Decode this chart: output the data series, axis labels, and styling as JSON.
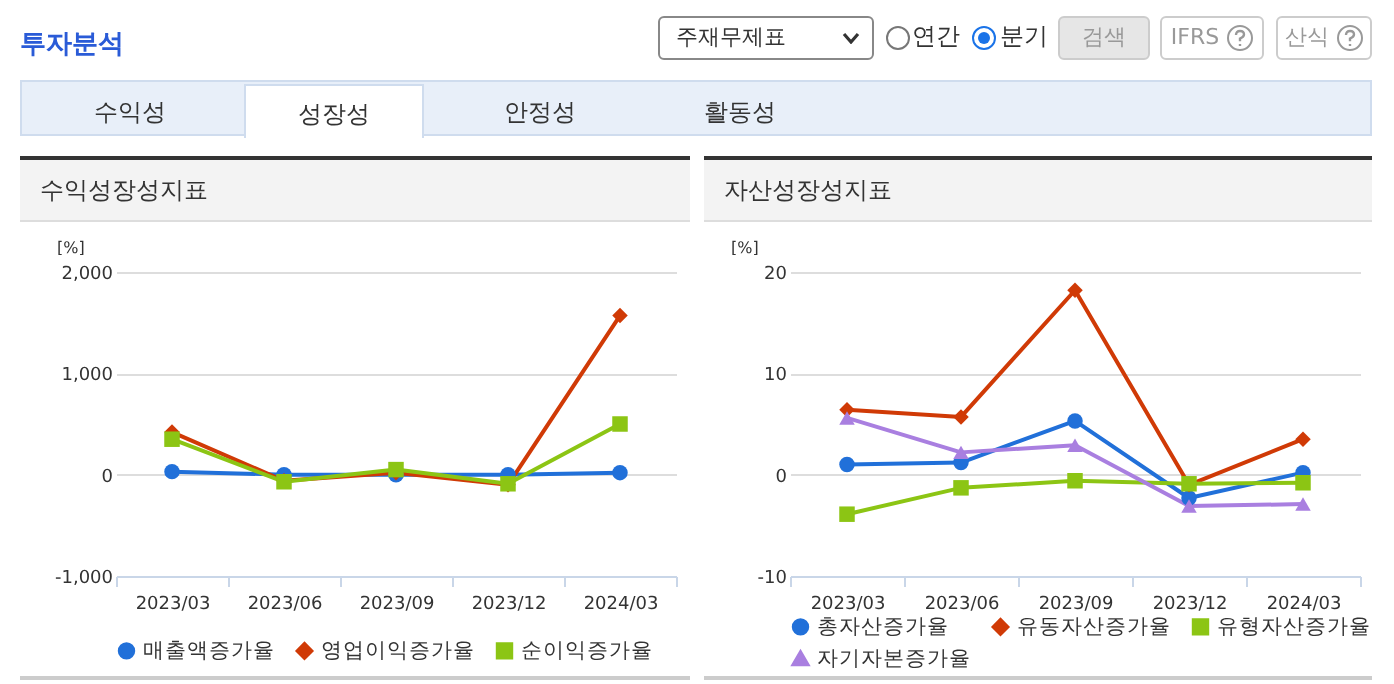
{
  "chart_data": [
    {
      "type": "line",
      "title": "수익성장성지표",
      "ylabel": "[%]",
      "categories": [
        "2023/03",
        "2023/06",
        "2023/09",
        "2023/12",
        "2024/03"
      ],
      "ylim": [
        -1000,
        2000
      ],
      "yticks": [
        {
          "value": -1000,
          "label": "-1,000"
        },
        0,
        {
          "value": 1000,
          "label": "1,000"
        },
        {
          "value": 2000,
          "label": "2,000"
        }
      ],
      "grid": "y",
      "legend": "bottom",
      "annotations": [
        "투자분석",
        "주재무제표",
        "연간",
        "분기",
        "검색",
        "IFRS",
        "산식",
        "수익성",
        "성장성",
        "안정성",
        "활동성"
      ],
      "series": [
        {
          "name": "매출액증가율",
          "color": "#2170d9",
          "marker": "circle",
          "values": [
            30,
            0,
            0,
            0,
            20
          ]
        },
        {
          "name": "영업이익증가율",
          "color": "#d03a06",
          "marker": "diamond",
          "values": [
            420,
            -60,
            20,
            -100,
            1570
          ]
        },
        {
          "name": "순이익증가율",
          "color": "#8cc514",
          "marker": "square",
          "values": [
            350,
            -70,
            50,
            -90,
            500
          ]
        }
      ]
    },
    {
      "type": "line",
      "title": "자산성장성지표",
      "ylabel": "[%]",
      "categories": [
        "2023/03",
        "2023/06",
        "2023/09",
        "2023/12",
        "2024/03"
      ],
      "ylim": [
        -10,
        20
      ],
      "yticks": [
        -10,
        0,
        10,
        20
      ],
      "grid": "y",
      "legend": "bottom",
      "series": [
        {
          "name": "총자산증가율",
          "color": "#2170d9",
          "marker": "circle",
          "values": [
            1.0,
            1.2,
            5.3,
            -2.3,
            0.2
          ]
        },
        {
          "name": "유동자산증가율",
          "color": "#d03a06",
          "marker": "diamond",
          "values": [
            6.4,
            5.7,
            18.2,
            -1.0,
            3.5
          ]
        },
        {
          "name": "유형자산증가율",
          "color": "#8cc514",
          "marker": "square",
          "values": [
            -3.9,
            -1.3,
            -0.6,
            -0.9,
            -0.8
          ]
        },
        {
          "name": "자기자본증가율",
          "color": "#a97fe0",
          "marker": "triangle",
          "values": [
            5.6,
            2.2,
            2.9,
            -3.1,
            -2.9
          ]
        }
      ]
    }
  ]
}
